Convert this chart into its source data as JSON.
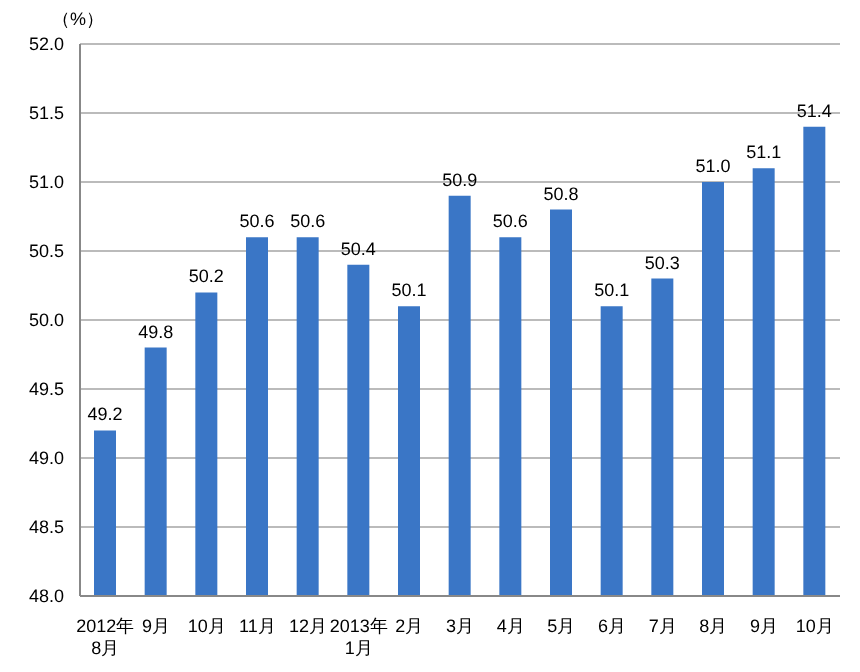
{
  "chart_data": {
    "type": "bar",
    "ylabel": "（%）",
    "categories": [
      "2012年\n8月",
      "9月",
      "10月",
      "11月",
      "12月",
      "2013年\n1月",
      "2月",
      "3月",
      "4月",
      "5月",
      "6月",
      "7月",
      "8月",
      "9月",
      "10月"
    ],
    "values": [
      49.2,
      49.8,
      50.2,
      50.6,
      50.6,
      50.4,
      50.1,
      50.9,
      50.6,
      50.8,
      50.1,
      50.3,
      51.0,
      51.1,
      51.4
    ],
    "value_labels": [
      "49.2",
      "49.8",
      "50.2",
      "50.6",
      "50.6",
      "50.4",
      "50.1",
      "50.9",
      "50.6",
      "50.8",
      "50.1",
      "50.3",
      "51.0",
      "51.1",
      "51.4"
    ],
    "color": "#3a76c6",
    "ylim": [
      48,
      52
    ],
    "yticks": [
      {
        "value": 48,
        "label": "48.0"
      },
      {
        "value": 48.5,
        "label": "48.5"
      },
      {
        "value": 49,
        "label": "49.0"
      },
      {
        "value": 49.5,
        "label": "49.5"
      },
      {
        "value": 50,
        "label": "50.0"
      },
      {
        "value": 50.5,
        "label": "50.5"
      },
      {
        "value": 51,
        "label": "51.0"
      },
      {
        "value": 51.5,
        "label": "51.5"
      },
      {
        "value": 52,
        "label": "52.0"
      }
    ],
    "grid": "y"
  }
}
